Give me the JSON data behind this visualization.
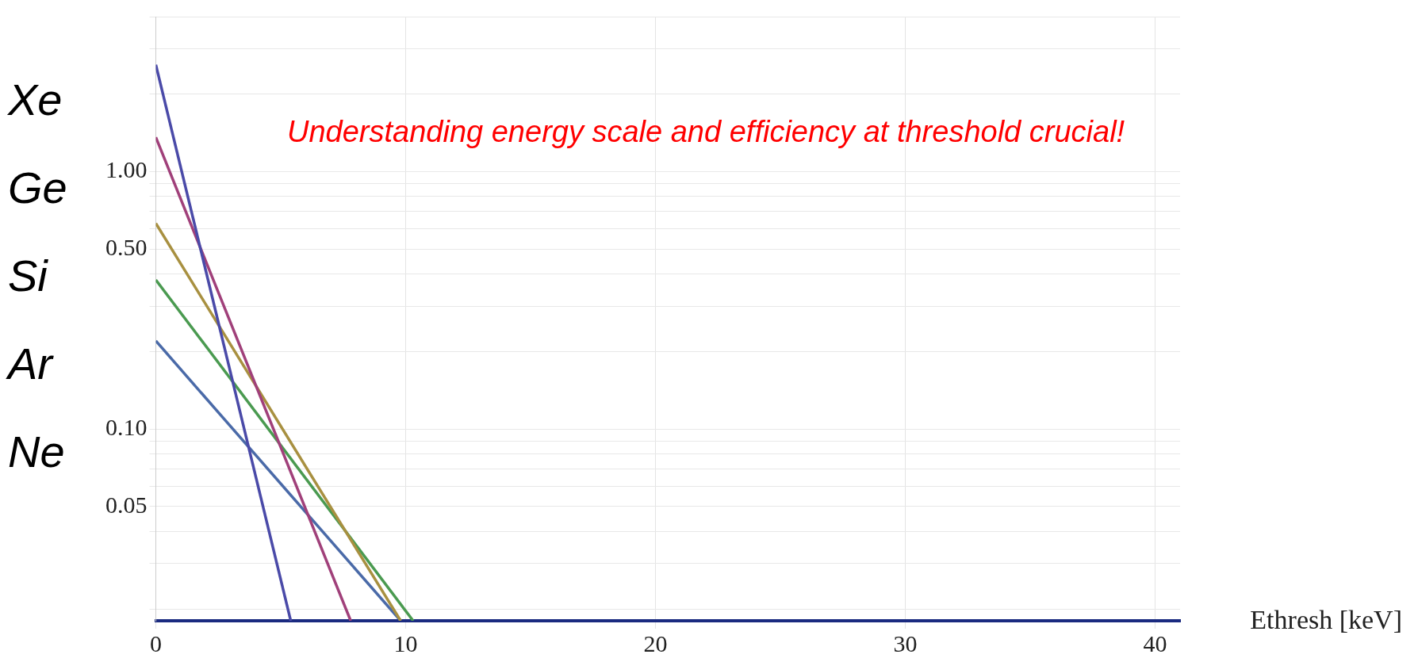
{
  "chart_data": {
    "type": "line",
    "xlabel": "Ethresh [keV]",
    "log": "y",
    "grid": true,
    "marker": "none",
    "line_style": "solid",
    "annotations": [
      "Understanding energy scale and efficiency at threshold crucial!",
      "Xe",
      "Ge",
      "Si",
      "Ar",
      "Ne"
    ],
    "xlim": [
      0,
      41
    ],
    "xticks": [
      0,
      10,
      20,
      30,
      40
    ],
    "ylim": [
      0.018,
      4
    ],
    "yticks": [
      {
        "value": 0.02,
        "label": null
      },
      {
        "value": 0.03,
        "label": null
      },
      {
        "value": 0.04,
        "label": null
      },
      {
        "value": 0.05,
        "label": "0.05"
      },
      {
        "value": 0.06,
        "label": null
      },
      {
        "value": 0.07,
        "label": null
      },
      {
        "value": 0.08,
        "label": null
      },
      {
        "value": 0.09,
        "label": null
      },
      {
        "value": 0.1,
        "label": "0.10"
      },
      {
        "value": 0.2,
        "label": null
      },
      {
        "value": 0.3,
        "label": null
      },
      {
        "value": 0.4,
        "label": null
      },
      {
        "value": 0.5,
        "label": "0.50"
      },
      {
        "value": 0.6,
        "label": null
      },
      {
        "value": 0.7,
        "label": null
      },
      {
        "value": 0.8,
        "label": null
      },
      {
        "value": 0.9,
        "label": null
      },
      {
        "value": 1,
        "label": "1.00"
      },
      {
        "value": 2,
        "label": null
      },
      {
        "value": 3,
        "label": null
      },
      {
        "value": 4,
        "label": null
      }
    ],
    "series": [
      {
        "color": "#4a4aa8",
        "x": [
          0,
          5.4
        ],
        "values": [
          2.6,
          0.018
        ]
      },
      {
        "color": "#a0407a",
        "x": [
          0,
          7.8
        ],
        "values": [
          1.36,
          0.018
        ]
      },
      {
        "color": "#a89040",
        "x": [
          0,
          9.8
        ],
        "values": [
          0.63,
          0.018
        ]
      },
      {
        "color": "#4a9a50",
        "x": [
          0,
          10.3
        ],
        "values": [
          0.38,
          0.018
        ]
      },
      {
        "color": "#4a6aa8",
        "x": [
          0,
          9.8
        ],
        "values": [
          0.22,
          0.018
        ]
      }
    ]
  }
}
